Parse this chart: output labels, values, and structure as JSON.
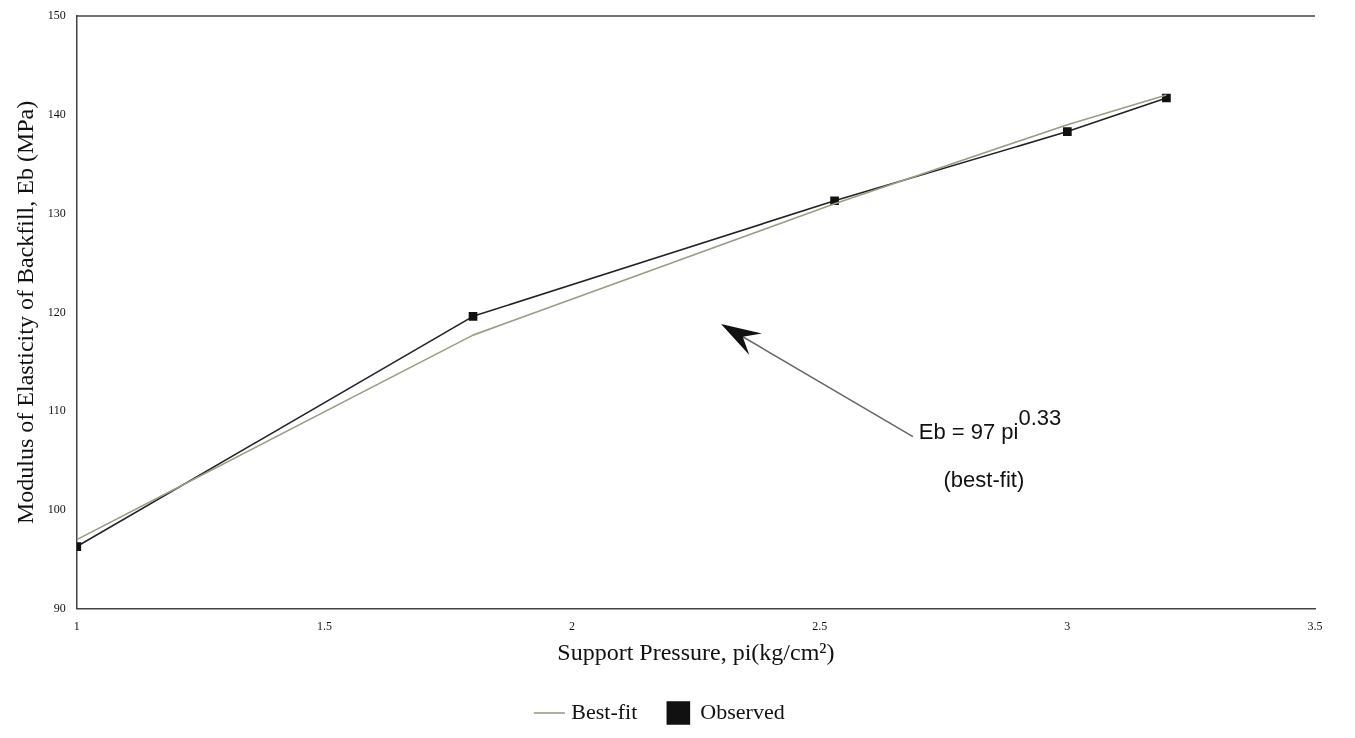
{
  "chart_data": {
    "type": "line",
    "xlabel": "Support Pressure, pi(kg/cm²)",
    "ylabel": "Modulus of Elasticity of Backfill, Eb (MPa)",
    "x": [
      1,
      1.8,
      2.53,
      3,
      3.2
    ],
    "series": [
      {
        "name": "Observed",
        "color": "#222222",
        "values": [
          96.3,
          119.6,
          131.3,
          138.3,
          141.7
        ],
        "marker": "square"
      },
      {
        "name": "Best-fit",
        "color": "#9c9c84",
        "values": [
          97,
          117.7,
          131,
          139,
          142
        ],
        "marker": "none"
      }
    ],
    "xlim": [
      1,
      3.5
    ],
    "xticks": [
      1,
      1.5,
      2,
      2.5,
      3,
      3.5
    ],
    "ylim": [
      90,
      150
    ],
    "yticks": [
      90,
      100,
      110,
      120,
      130,
      140,
      150
    ],
    "grid": false,
    "legend": "bottom",
    "line_style": "solid",
    "annotations": [
      "Eb = 97 pi$^{0.33}$",
      "(best-fit)"
    ]
  }
}
